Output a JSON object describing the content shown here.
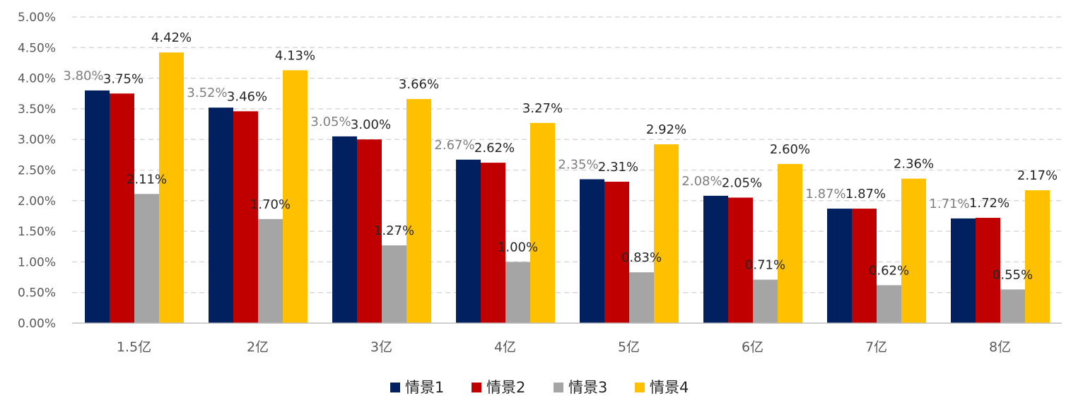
{
  "chart_data": {
    "type": "bar",
    "title": "",
    "xlabel": "",
    "ylabel": "",
    "categories": [
      "1.5亿",
      "2亿",
      "3亿",
      "4亿",
      "5亿",
      "6亿",
      "7亿",
      "8亿"
    ],
    "ylim": [
      0,
      5
    ],
    "yticks": [
      "0.00%",
      "0.50%",
      "1.00%",
      "1.50%",
      "2.00%",
      "2.50%",
      "3.00%",
      "3.50%",
      "4.00%",
      "4.50%",
      "5.00%"
    ],
    "grid": "horizontal dashed",
    "legend_position": "bottom",
    "series": [
      {
        "name": "情景1",
        "color": "#002060",
        "values": [
          3.8,
          3.52,
          3.05,
          2.67,
          2.35,
          2.08,
          1.87,
          1.71
        ],
        "labels": [
          "3.80%",
          "3.52%",
          "3.05%",
          "2.67%",
          "2.35%",
          "2.08%",
          "1.87%",
          "1.71%"
        ]
      },
      {
        "name": "情景2",
        "color": "#C00000",
        "values": [
          3.75,
          3.46,
          3.0,
          2.62,
          2.31,
          2.05,
          1.87,
          1.72
        ],
        "labels": [
          "3.75%",
          "3.46%",
          "3.00%",
          "2.62%",
          "2.31%",
          "2.05%",
          "1.87%",
          "1.72%"
        ]
      },
      {
        "name": "情景3",
        "color": "#A5A5A5",
        "values": [
          2.11,
          1.7,
          1.27,
          1.0,
          0.83,
          0.71,
          0.62,
          0.55
        ],
        "labels": [
          "2.11%",
          "1.70%",
          "1.27%",
          "1.00%",
          "0.83%",
          "0.71%",
          "0.62%",
          "0.55%"
        ]
      },
      {
        "name": "情景4",
        "color": "#FFC000",
        "values": [
          4.42,
          4.13,
          3.66,
          3.27,
          2.92,
          2.6,
          2.36,
          2.17
        ],
        "labels": [
          "4.42%",
          "4.13%",
          "3.66%",
          "3.27%",
          "2.92%",
          "2.60%",
          "2.36%",
          "2.17%"
        ]
      }
    ]
  }
}
